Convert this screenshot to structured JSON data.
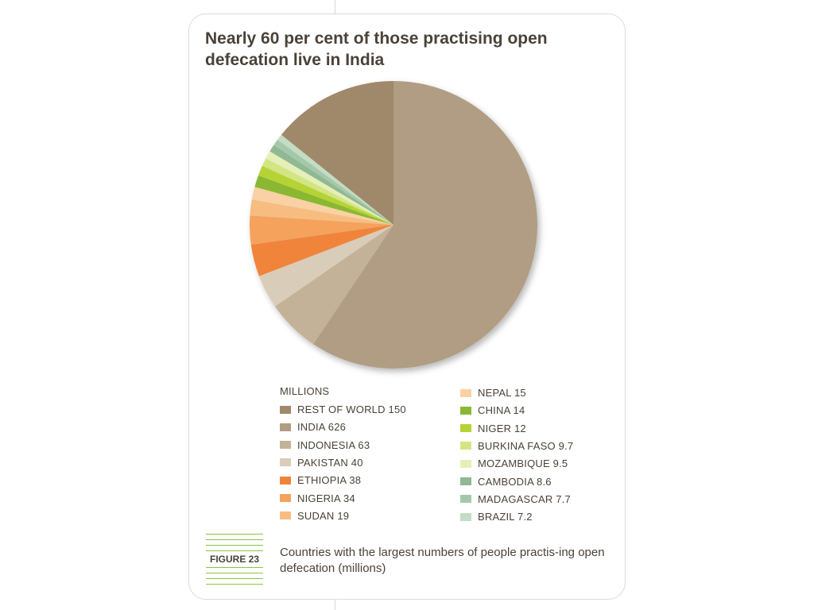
{
  "title": "Nearly 60 per cent of those practising open defecation live in India",
  "legend_heading": "MILLIONS",
  "figure_label": "FIGURE 23",
  "caption": "Countries with the largest numbers of people practis-ing open defecation (millions)",
  "chart_data": {
    "type": "pie",
    "unit": "millions",
    "slices": [
      {
        "label": "REST OF WORLD 150",
        "name": "REST OF WORLD",
        "value": 150,
        "color": "#a0896a"
      },
      {
        "label": "INDIA 626",
        "name": "INDIA",
        "value": 626,
        "color": "#b09d83"
      },
      {
        "label": "INDONESIA 63",
        "name": "INDONESIA",
        "value": 63,
        "color": "#c4b298"
      },
      {
        "label": "PAKISTAN 40",
        "name": "PAKISTAN",
        "value": 40,
        "color": "#d9ccb9"
      },
      {
        "label": "ETHIOPIA 38",
        "name": "ETHIOPIA",
        "value": 38,
        "color": "#f0843a"
      },
      {
        "label": "NIGERIA 34",
        "name": "NIGERIA",
        "value": 34,
        "color": "#f4a25c"
      },
      {
        "label": "SUDAN 19",
        "name": "SUDAN",
        "value": 19,
        "color": "#f7bd80"
      },
      {
        "label": "NEPAL 15",
        "name": "NEPAL",
        "value": 15,
        "color": "#f9d1a4"
      },
      {
        "label": "CHINA 14",
        "name": "CHINA",
        "value": 14,
        "color": "#8ab832"
      },
      {
        "label": "NIGER 12",
        "name": "NIGER",
        "value": 12,
        "color": "#b5d334"
      },
      {
        "label": "BURKINA FASO 9.7",
        "name": "BURKINA FASO",
        "value": 9.7,
        "color": "#d3e582"
      },
      {
        "label": "MOZAMBIQUE 9.5",
        "name": "MOZAMBIQUE",
        "value": 9.5,
        "color": "#e6efb6"
      },
      {
        "label": "CAMBODIA 8.6",
        "name": "CAMBODIA",
        "value": 8.6,
        "color": "#8fb894"
      },
      {
        "label": "MADAGASCAR 7.7",
        "name": "MADAGASCAR",
        "value": 7.7,
        "color": "#a6c8aa"
      },
      {
        "label": "BRAZIL 7.2",
        "name": "BRAZIL",
        "value": 7.2,
        "color": "#c3dcc4"
      }
    ]
  }
}
